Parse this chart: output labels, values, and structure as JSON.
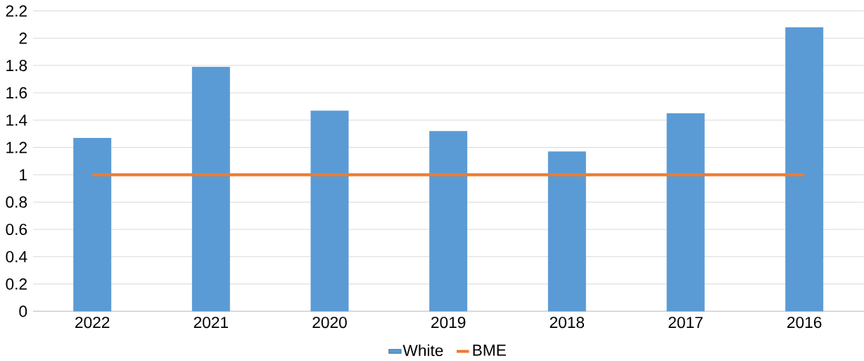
{
  "chart_data": {
    "type": "bar",
    "categories": [
      "2022",
      "2021",
      "2020",
      "2019",
      "2018",
      "2017",
      "2016"
    ],
    "series": [
      {
        "name": "White",
        "color": "#5b9bd5",
        "values": [
          1.27,
          1.79,
          1.47,
          1.32,
          1.17,
          1.45,
          2.08
        ]
      },
      {
        "name": "BME",
        "type": "line",
        "color": "#ed7d31",
        "values": [
          1,
          1,
          1,
          1,
          1,
          1,
          1
        ]
      }
    ],
    "ylim": [
      0,
      2.2
    ],
    "yticks": [
      0,
      0.2,
      0.4,
      0.6,
      0.8,
      1,
      1.2,
      1.4,
      1.6,
      1.8,
      2,
      2.2
    ],
    "grid": "y",
    "legend": "bottom",
    "marker": "none"
  }
}
